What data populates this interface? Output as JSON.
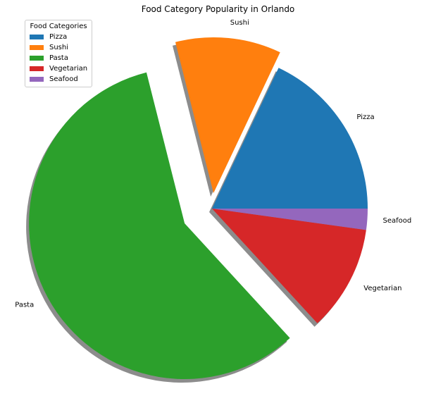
{
  "chart_data": {
    "type": "pie",
    "title": "Food Category Popularity in Orlando",
    "categories": [
      "Pizza",
      "Sushi",
      "Pasta",
      "Vegetarian",
      "Seafood"
    ],
    "values": [
      18,
      11,
      58,
      11,
      2.2
    ],
    "colors": [
      "#1f77b4",
      "#ff7f0e",
      "#2ca02c",
      "#d62728",
      "#9467bd"
    ],
    "explode": [
      0,
      0.1,
      0.2,
      0,
      0
    ],
    "shadow": true,
    "start_angle": 0,
    "direction": "counterclockwise",
    "legend": {
      "title": "Food Categories",
      "placement": "upper-left"
    }
  }
}
